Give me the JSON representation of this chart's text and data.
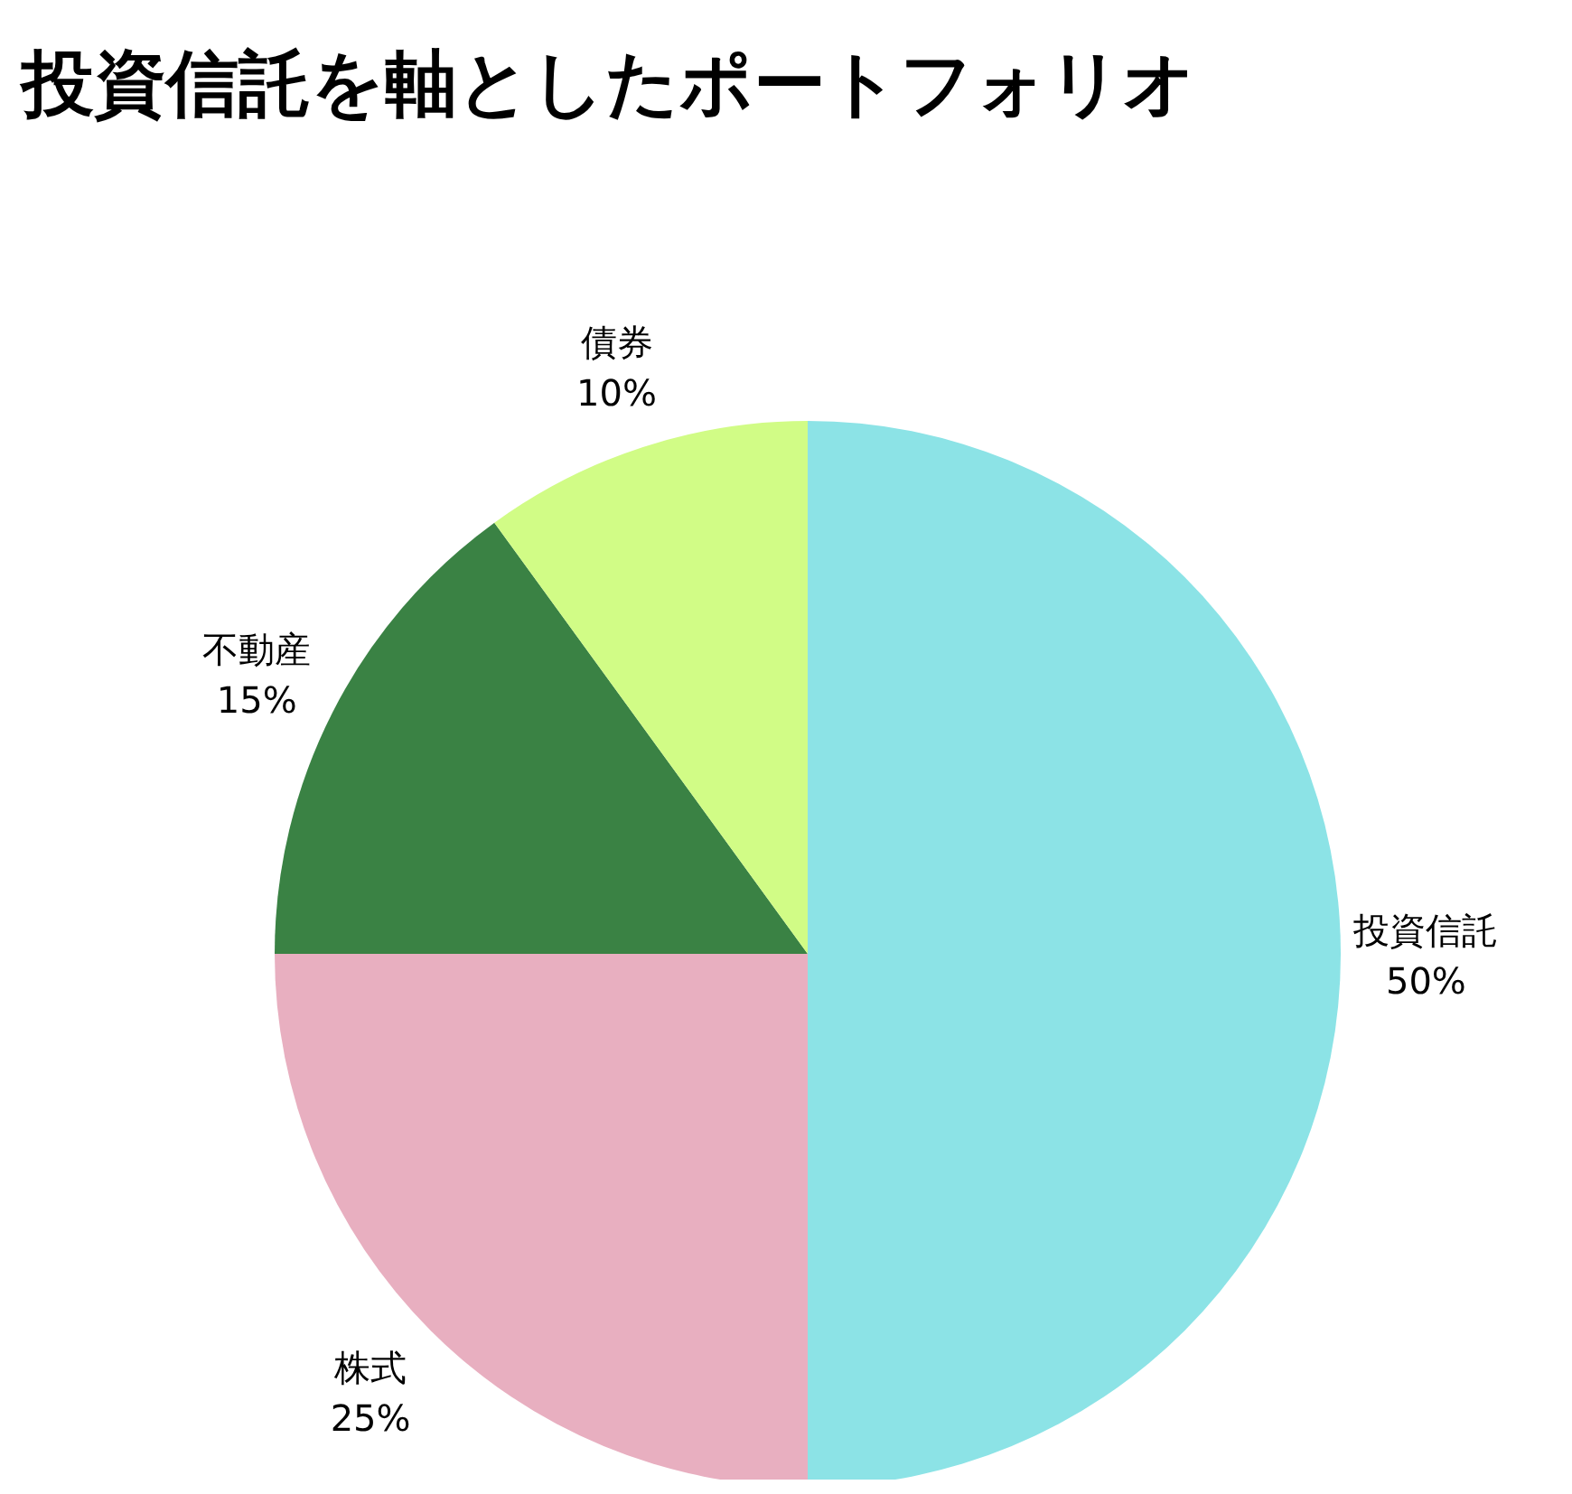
{
  "chart_data": {
    "type": "pie",
    "title": "投資信託を軸としたポートフォリオ",
    "categories": [
      "投資信託",
      "株式",
      "不動産",
      "債券"
    ],
    "values": [
      50,
      25,
      15,
      10
    ],
    "value_labels": [
      "50%",
      "25%",
      "15%",
      "10%"
    ],
    "colors": [
      "#8ce3e6",
      "#e8afc0",
      "#3a8244",
      "#d1fc86"
    ]
  }
}
